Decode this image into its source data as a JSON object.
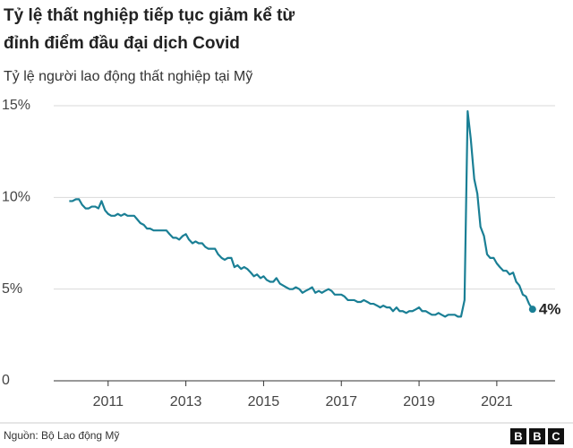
{
  "chart_data": {
    "type": "line",
    "title": [
      "Tỷ lệ thất nghiệp tiếp tục giảm kể từ",
      "đỉnh điểm đầu đại dịch Covid"
    ],
    "subtitle": "Tỷ lệ người lao động thất nghiệp tại Mỹ",
    "source": "Nguồn: Bộ Lao động Mỹ",
    "logo": [
      "B",
      "B",
      "C"
    ],
    "xlim": [
      2009.6,
      2022.5
    ],
    "xticks": [
      2011,
      2013,
      2015,
      2017,
      2019,
      2021
    ],
    "ylim": [
      0,
      15
    ],
    "yticks": [
      0,
      {
        "value": 5,
        "label": "5%"
      },
      {
        "value": 10,
        "label": "10%"
      },
      {
        "value": 15,
        "label": "15%"
      }
    ],
    "grid": true,
    "series": [
      {
        "color": "#1a7f95",
        "x": [
          2010,
          2010.08,
          2010.17,
          2010.25,
          2010.33,
          2010.42,
          2010.5,
          2010.58,
          2010.67,
          2010.75,
          2010.83,
          2010.92,
          2011,
          2011.08,
          2011.17,
          2011.25,
          2011.33,
          2011.42,
          2011.5,
          2011.58,
          2011.67,
          2011.75,
          2011.83,
          2011.92,
          2012,
          2012.08,
          2012.17,
          2012.25,
          2012.33,
          2012.42,
          2012.5,
          2012.58,
          2012.67,
          2012.75,
          2012.83,
          2012.92,
          2013,
          2013.08,
          2013.17,
          2013.25,
          2013.33,
          2013.42,
          2013.5,
          2013.58,
          2013.67,
          2013.75,
          2013.83,
          2013.92,
          2014,
          2014.08,
          2014.17,
          2014.25,
          2014.33,
          2014.42,
          2014.5,
          2014.58,
          2014.67,
          2014.75,
          2014.83,
          2014.92,
          2015,
          2015.08,
          2015.17,
          2015.25,
          2015.33,
          2015.42,
          2015.5,
          2015.58,
          2015.67,
          2015.75,
          2015.83,
          2015.92,
          2016,
          2016.08,
          2016.17,
          2016.25,
          2016.33,
          2016.42,
          2016.5,
          2016.58,
          2016.67,
          2016.75,
          2016.83,
          2016.92,
          2017,
          2017.08,
          2017.17,
          2017.25,
          2017.33,
          2017.42,
          2017.5,
          2017.58,
          2017.67,
          2017.75,
          2017.83,
          2017.92,
          2018,
          2018.08,
          2018.17,
          2018.25,
          2018.33,
          2018.42,
          2018.5,
          2018.58,
          2018.67,
          2018.75,
          2018.83,
          2018.92,
          2019,
          2019.08,
          2019.17,
          2019.25,
          2019.33,
          2019.42,
          2019.5,
          2019.58,
          2019.67,
          2019.75,
          2019.83,
          2019.92,
          2020,
          2020.08,
          2020.17,
          2020.25,
          2020.33,
          2020.42,
          2020.5,
          2020.58,
          2020.67,
          2020.75,
          2020.83,
          2020.92,
          2021,
          2021.08,
          2021.17,
          2021.25,
          2021.33,
          2021.42,
          2021.5,
          2021.58,
          2021.67,
          2021.75,
          2021.83,
          2021.92
        ],
        "values": [
          9.8,
          9.8,
          9.9,
          9.9,
          9.6,
          9.4,
          9.4,
          9.5,
          9.5,
          9.4,
          9.8,
          9.3,
          9.1,
          9.0,
          9.0,
          9.1,
          9.0,
          9.1,
          9.0,
          9.0,
          9.0,
          8.8,
          8.6,
          8.5,
          8.3,
          8.3,
          8.2,
          8.2,
          8.2,
          8.2,
          8.2,
          8.0,
          7.8,
          7.8,
          7.7,
          7.9,
          8.0,
          7.7,
          7.5,
          7.6,
          7.5,
          7.5,
          7.3,
          7.2,
          7.2,
          7.2,
          6.9,
          6.7,
          6.6,
          6.7,
          6.7,
          6.2,
          6.3,
          6.1,
          6.2,
          6.1,
          5.9,
          5.7,
          5.8,
          5.6,
          5.7,
          5.5,
          5.4,
          5.4,
          5.6,
          5.3,
          5.2,
          5.1,
          5.0,
          5.0,
          5.1,
          5.0,
          4.8,
          4.9,
          5.0,
          5.1,
          4.8,
          4.9,
          4.8,
          4.9,
          5.0,
          4.9,
          4.7,
          4.7,
          4.7,
          4.6,
          4.4,
          4.4,
          4.4,
          4.3,
          4.3,
          4.4,
          4.3,
          4.2,
          4.2,
          4.1,
          4.0,
          4.1,
          4.0,
          4.0,
          3.8,
          4.0,
          3.8,
          3.8,
          3.7,
          3.8,
          3.8,
          3.9,
          4.0,
          3.8,
          3.8,
          3.7,
          3.6,
          3.6,
          3.7,
          3.6,
          3.5,
          3.6,
          3.6,
          3.6,
          3.5,
          3.5,
          4.4,
          14.7,
          13.2,
          11.0,
          10.2,
          8.4,
          7.9,
          6.9,
          6.7,
          6.7,
          6.4,
          6.2,
          6.0,
          6.0,
          5.8,
          5.9,
          5.4,
          5.2,
          4.7,
          4.6,
          4.2,
          3.9
        ],
        "value_labels": [
          null,
          null,
          null,
          null,
          null,
          null,
          null,
          null,
          null,
          null,
          null,
          null,
          null,
          null,
          null,
          null,
          null,
          null,
          null,
          null,
          null,
          null,
          null,
          null,
          null,
          null,
          null,
          null,
          null,
          null,
          null,
          null,
          null,
          null,
          null,
          null,
          null,
          null,
          null,
          null,
          null,
          null,
          null,
          null,
          null,
          null,
          null,
          null,
          null,
          null,
          null,
          null,
          null,
          null,
          null,
          null,
          null,
          null,
          null,
          null,
          null,
          null,
          null,
          null,
          null,
          null,
          null,
          null,
          null,
          null,
          null,
          null,
          null,
          null,
          null,
          null,
          null,
          null,
          null,
          null,
          null,
          null,
          null,
          null,
          null,
          null,
          null,
          null,
          null,
          null,
          null,
          null,
          null,
          null,
          null,
          null,
          null,
          null,
          null,
          null,
          null,
          null,
          null,
          null,
          null,
          null,
          null,
          null,
          null,
          null,
          null,
          null,
          null,
          null,
          null,
          null,
          null,
          null,
          null,
          null,
          null,
          null,
          null,
          null,
          null,
          null,
          null,
          null,
          null,
          null,
          null,
          null,
          null,
          null,
          null,
          null,
          null,
          null,
          null,
          null,
          null,
          null,
          null,
          "4%"
        ]
      }
    ]
  }
}
